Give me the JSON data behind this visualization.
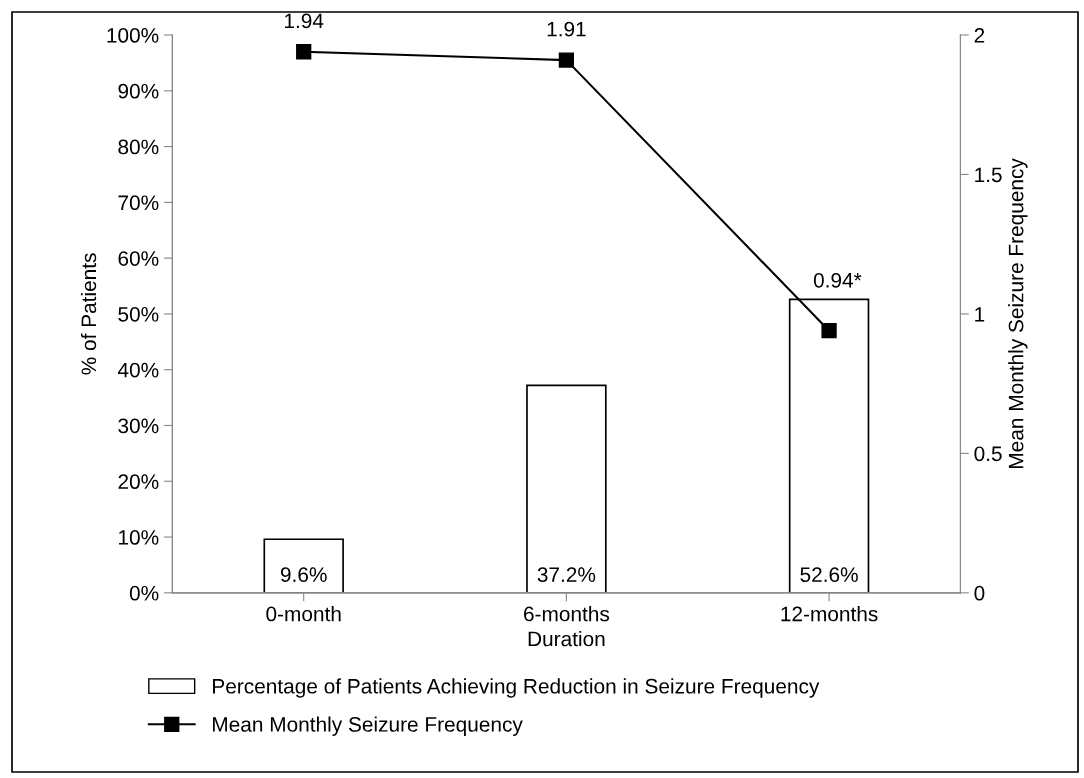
{
  "chart_data": {
    "type": "bar",
    "xlabel": "Duration",
    "ylabel": "% of Patients",
    "y2label": "Mean Monthly Seizure Frequency",
    "categories": [
      "0-month",
      "6-months",
      "12-months"
    ],
    "series": [
      {
        "name": "Percentage of Patients Achieving Reduction in Seizure Frequency",
        "color": "#ffffff",
        "values": [
          9.6,
          37.2,
          52.6
        ],
        "value_labels": [
          "9.6%",
          "37.2%",
          "52.6%"
        ]
      },
      {
        "name": "Mean Monthly Seizure Frequency",
        "type": "line",
        "axis": "y2",
        "color": "#000000",
        "values": [
          1.94,
          1.91,
          0.94
        ],
        "value_labels": [
          "1.94",
          "1.91",
          "0.94*"
        ],
        "marker": "square"
      }
    ],
    "ylim": [
      0,
      100
    ],
    "yticks": [
      {
        "value": 0,
        "label": "0%"
      },
      {
        "value": 10,
        "label": "10%"
      },
      {
        "value": 20,
        "label": "20%"
      },
      {
        "value": 30,
        "label": "30%"
      },
      {
        "value": 40,
        "label": "40%"
      },
      {
        "value": 50,
        "label": "50%"
      },
      {
        "value": 60,
        "label": "60%"
      },
      {
        "value": 70,
        "label": "70%"
      },
      {
        "value": 80,
        "label": "80%"
      },
      {
        "value": 90,
        "label": "90%"
      },
      {
        "value": 100,
        "label": "100%"
      }
    ],
    "y2lim": [
      0,
      2
    ],
    "y2ticks": [
      0,
      0.5,
      1,
      1.5,
      2
    ],
    "legend": "bottom",
    "grid": false
  }
}
